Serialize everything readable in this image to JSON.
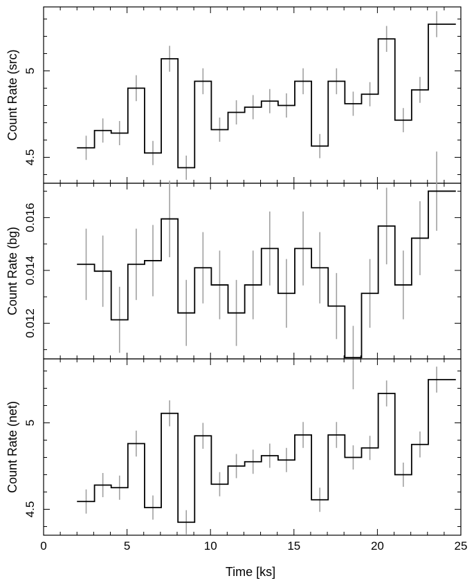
{
  "chart_data": [
    {
      "type": "line",
      "name": "src",
      "ylabel": "Count Rate (src)",
      "ylim": [
        4.35,
        5.37
      ],
      "yticks_major": [
        4.5,
        5
      ],
      "yticks_minor": [
        4.4,
        4.6,
        4.7,
        4.8,
        4.9,
        5.1,
        5.2,
        5.3
      ],
      "ytick_labels": [
        "4.5",
        "5"
      ],
      "bins": [
        {
          "x0": 2.0,
          "x1": 3.05,
          "x": 2.55,
          "y": 4.555,
          "yerr": 0.07
        },
        {
          "x0": 3.05,
          "x1": 4.05,
          "x": 3.55,
          "y": 4.655,
          "yerr": 0.07
        },
        {
          "x0": 4.05,
          "x1": 5.05,
          "x": 4.55,
          "y": 4.64,
          "yerr": 0.07
        },
        {
          "x0": 5.05,
          "x1": 6.05,
          "x": 5.55,
          "y": 4.9,
          "yerr": 0.075
        },
        {
          "x0": 6.05,
          "x1": 7.05,
          "x": 6.55,
          "y": 4.525,
          "yerr": 0.07
        },
        {
          "x0": 7.05,
          "x1": 8.05,
          "x": 7.55,
          "y": 5.07,
          "yerr": 0.075
        },
        {
          "x0": 8.05,
          "x1": 9.05,
          "x": 8.55,
          "y": 4.44,
          "yerr": 0.07
        },
        {
          "x0": 9.05,
          "x1": 10.05,
          "x": 9.55,
          "y": 4.94,
          "yerr": 0.075
        },
        {
          "x0": 10.05,
          "x1": 11.05,
          "x": 10.55,
          "y": 4.66,
          "yerr": 0.07
        },
        {
          "x0": 11.05,
          "x1": 12.05,
          "x": 11.55,
          "y": 4.76,
          "yerr": 0.07
        },
        {
          "x0": 12.05,
          "x1": 13.05,
          "x": 12.55,
          "y": 4.79,
          "yerr": 0.07
        },
        {
          "x0": 13.05,
          "x1": 14.05,
          "x": 13.55,
          "y": 4.825,
          "yerr": 0.07
        },
        {
          "x0": 14.05,
          "x1": 15.05,
          "x": 14.55,
          "y": 4.8,
          "yerr": 0.07
        },
        {
          "x0": 15.05,
          "x1": 16.05,
          "x": 15.55,
          "y": 4.94,
          "yerr": 0.075
        },
        {
          "x0": 16.05,
          "x1": 17.05,
          "x": 16.55,
          "y": 4.565,
          "yerr": 0.07
        },
        {
          "x0": 17.05,
          "x1": 18.05,
          "x": 17.55,
          "y": 4.94,
          "yerr": 0.075
        },
        {
          "x0": 18.05,
          "x1": 19.05,
          "x": 18.55,
          "y": 4.81,
          "yerr": 0.07
        },
        {
          "x0": 19.05,
          "x1": 20.05,
          "x": 19.55,
          "y": 4.865,
          "yerr": 0.07
        },
        {
          "x0": 20.05,
          "x1": 21.05,
          "x": 20.55,
          "y": 5.185,
          "yerr": 0.075
        },
        {
          "x0": 21.05,
          "x1": 22.05,
          "x": 21.55,
          "y": 4.715,
          "yerr": 0.07
        },
        {
          "x0": 22.05,
          "x1": 23.05,
          "x": 22.55,
          "y": 4.89,
          "yerr": 0.075
        },
        {
          "x0": 23.05,
          "x1": 24.7,
          "x": 23.55,
          "y": 5.27,
          "yerr": 0.075
        }
      ]
    },
    {
      "type": "line",
      "name": "bg",
      "ylabel": "Count Rate (bg)",
      "ylim": [
        0.01065,
        0.0173
      ],
      "yticks_major": [
        0.012,
        0.014,
        0.016
      ],
      "yticks_minor": [
        0.011,
        0.013,
        0.015,
        0.017
      ],
      "ytick_labels": [
        "0.012",
        "0.014",
        "0.016"
      ],
      "bins": [
        {
          "x0": 2.0,
          "x1": 3.05,
          "x": 2.55,
          "y": 0.01423,
          "yerr": 0.00135
        },
        {
          "x0": 3.05,
          "x1": 4.05,
          "x": 3.55,
          "y": 0.01397,
          "yerr": 0.00135
        },
        {
          "x0": 4.05,
          "x1": 5.05,
          "x": 4.55,
          "y": 0.01213,
          "yerr": 0.00125
        },
        {
          "x0": 5.05,
          "x1": 6.05,
          "x": 5.55,
          "y": 0.01423,
          "yerr": 0.00135
        },
        {
          "x0": 6.05,
          "x1": 7.05,
          "x": 6.55,
          "y": 0.01437,
          "yerr": 0.00135
        },
        {
          "x0": 7.05,
          "x1": 8.05,
          "x": 7.55,
          "y": 0.01595,
          "yerr": 0.00145
        },
        {
          "x0": 8.05,
          "x1": 9.05,
          "x": 8.55,
          "y": 0.01239,
          "yerr": 0.00125
        },
        {
          "x0": 9.05,
          "x1": 10.05,
          "x": 9.55,
          "y": 0.0141,
          "yerr": 0.00135
        },
        {
          "x0": 10.05,
          "x1": 11.05,
          "x": 10.55,
          "y": 0.01345,
          "yerr": 0.0013
        },
        {
          "x0": 11.05,
          "x1": 12.05,
          "x": 11.55,
          "y": 0.01239,
          "yerr": 0.00125
        },
        {
          "x0": 12.05,
          "x1": 13.05,
          "x": 12.55,
          "y": 0.01345,
          "yerr": 0.0013
        },
        {
          "x0": 13.05,
          "x1": 14.05,
          "x": 13.55,
          "y": 0.01483,
          "yerr": 0.0014
        },
        {
          "x0": 14.05,
          "x1": 15.05,
          "x": 14.55,
          "y": 0.01313,
          "yerr": 0.0013
        },
        {
          "x0": 15.05,
          "x1": 16.05,
          "x": 15.55,
          "y": 0.01483,
          "yerr": 0.0014
        },
        {
          "x0": 16.05,
          "x1": 17.05,
          "x": 16.55,
          "y": 0.0141,
          "yerr": 0.00135
        },
        {
          "x0": 17.05,
          "x1": 18.05,
          "x": 17.55,
          "y": 0.01265,
          "yerr": 0.00125
        },
        {
          "x0": 18.05,
          "x1": 19.05,
          "x": 18.55,
          "y": 0.0107,
          "yerr": 0.0012
        },
        {
          "x0": 19.05,
          "x1": 20.05,
          "x": 19.55,
          "y": 0.01313,
          "yerr": 0.0013
        },
        {
          "x0": 20.05,
          "x1": 21.05,
          "x": 20.55,
          "y": 0.01568,
          "yerr": 0.00145
        },
        {
          "x0": 21.05,
          "x1": 22.05,
          "x": 21.55,
          "y": 0.01345,
          "yerr": 0.0013
        },
        {
          "x0": 22.05,
          "x1": 23.05,
          "x": 22.55,
          "y": 0.01522,
          "yerr": 0.0014
        },
        {
          "x0": 23.05,
          "x1": 24.7,
          "x": 23.55,
          "y": 0.017,
          "yerr": 0.0015
        }
      ]
    },
    {
      "type": "line",
      "name": "net",
      "ylabel": "Count Rate (net)",
      "ylim": [
        4.35,
        5.37
      ],
      "yticks_major": [
        4.5,
        5
      ],
      "yticks_minor": [
        4.4,
        4.6,
        4.7,
        4.8,
        4.9,
        5.1,
        5.2,
        5.3
      ],
      "ytick_labels": [
        "4.5",
        "5"
      ],
      "xlabel": "Time [ks]",
      "bins": [
        {
          "x0": 2.0,
          "x1": 3.05,
          "x": 2.55,
          "y": 4.545,
          "yerr": 0.07
        },
        {
          "x0": 3.05,
          "x1": 4.05,
          "x": 3.55,
          "y": 4.64,
          "yerr": 0.07
        },
        {
          "x0": 4.05,
          "x1": 5.05,
          "x": 4.55,
          "y": 4.625,
          "yerr": 0.07
        },
        {
          "x0": 5.05,
          "x1": 6.05,
          "x": 5.55,
          "y": 4.88,
          "yerr": 0.075
        },
        {
          "x0": 6.05,
          "x1": 7.05,
          "x": 6.55,
          "y": 4.51,
          "yerr": 0.07
        },
        {
          "x0": 7.05,
          "x1": 8.05,
          "x": 7.55,
          "y": 5.055,
          "yerr": 0.075
        },
        {
          "x0": 8.05,
          "x1": 9.05,
          "x": 8.55,
          "y": 4.425,
          "yerr": 0.07
        },
        {
          "x0": 9.05,
          "x1": 10.05,
          "x": 9.55,
          "y": 4.925,
          "yerr": 0.075
        },
        {
          "x0": 10.05,
          "x1": 11.05,
          "x": 10.55,
          "y": 4.645,
          "yerr": 0.07
        },
        {
          "x0": 11.05,
          "x1": 12.05,
          "x": 11.55,
          "y": 4.75,
          "yerr": 0.07
        },
        {
          "x0": 12.05,
          "x1": 13.05,
          "x": 12.55,
          "y": 4.775,
          "yerr": 0.07
        },
        {
          "x0": 13.05,
          "x1": 14.05,
          "x": 13.55,
          "y": 4.81,
          "yerr": 0.07
        },
        {
          "x0": 14.05,
          "x1": 15.05,
          "x": 14.55,
          "y": 4.785,
          "yerr": 0.07
        },
        {
          "x0": 15.05,
          "x1": 16.05,
          "x": 15.55,
          "y": 4.93,
          "yerr": 0.075
        },
        {
          "x0": 16.05,
          "x1": 17.05,
          "x": 16.55,
          "y": 4.555,
          "yerr": 0.07
        },
        {
          "x0": 17.05,
          "x1": 18.05,
          "x": 17.55,
          "y": 4.93,
          "yerr": 0.075
        },
        {
          "x0": 18.05,
          "x1": 19.05,
          "x": 18.55,
          "y": 4.8,
          "yerr": 0.07
        },
        {
          "x0": 19.05,
          "x1": 20.05,
          "x": 19.55,
          "y": 4.855,
          "yerr": 0.07
        },
        {
          "x0": 20.05,
          "x1": 21.05,
          "x": 20.55,
          "y": 5.17,
          "yerr": 0.075
        },
        {
          "x0": 21.05,
          "x1": 22.05,
          "x": 21.55,
          "y": 4.7,
          "yerr": 0.07
        },
        {
          "x0": 22.05,
          "x1": 23.05,
          "x": 22.55,
          "y": 4.875,
          "yerr": 0.075
        },
        {
          "x0": 23.05,
          "x1": 24.7,
          "x": 23.55,
          "y": 5.25,
          "yerr": 0.075
        }
      ]
    }
  ],
  "x_axis": {
    "xlim": [
      0,
      25
    ],
    "ticks_major": [
      0,
      5,
      10,
      15,
      20,
      25
    ],
    "ticks_minor": [
      1,
      2,
      3,
      4,
      6,
      7,
      8,
      9,
      11,
      12,
      13,
      14,
      16,
      17,
      18,
      19,
      21,
      22,
      23,
      24
    ],
    "tick_labels": [
      "0",
      "5",
      "10",
      "15",
      "20",
      "25"
    ]
  },
  "colors": {
    "step_line": "#000000",
    "error_bars": "#a0a0a0",
    "frame": "#000000"
  }
}
